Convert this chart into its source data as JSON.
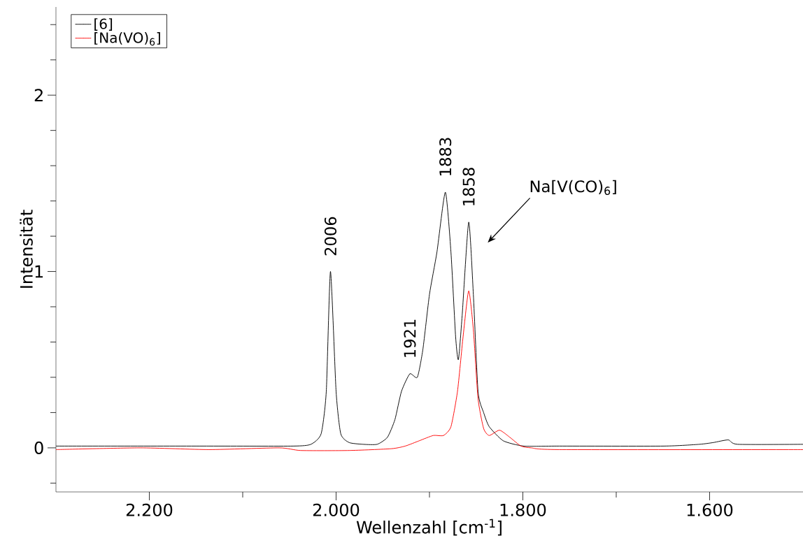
{
  "chart_data": {
    "type": "line",
    "xlabel": "Wellenzahl [cm$^{-1}$]",
    "ylabel": "Intensität",
    "xlim": [
      2300,
      1500
    ],
    "ylim": [
      -0.25,
      2.5
    ],
    "xticks": [
      {
        "value": 2200,
        "label": "2.200"
      },
      {
        "value": 2100,
        "label": null
      },
      {
        "value": 2000,
        "label": "2.000"
      },
      {
        "value": 1900,
        "label": null
      },
      {
        "value": 1800,
        "label": "1.800"
      },
      {
        "value": 1700,
        "label": null
      },
      {
        "value": 1600,
        "label": "1.600"
      }
    ],
    "yticks": [
      {
        "value": -0.2,
        "label": null
      },
      0,
      {
        "value": 0.2,
        "label": null
      },
      {
        "value": 0.4,
        "label": null
      },
      {
        "value": 0.6,
        "label": null
      },
      {
        "value": 0.8,
        "label": null
      },
      1,
      {
        "value": 1.2,
        "label": null
      },
      {
        "value": 1.4,
        "label": null
      },
      {
        "value": 1.6,
        "label": null
      },
      {
        "value": 1.8,
        "label": null
      },
      2,
      {
        "value": 2.2,
        "label": null
      },
      {
        "value": 2.4,
        "label": null
      }
    ],
    "grid": false,
    "legend": "top left",
    "marker": "none",
    "line_style": "solid",
    "series": [
      {
        "name": "[6]",
        "color": "#000000",
        "x": [
          2300,
          2136,
          2046,
          2027,
          2016,
          2010.5,
          2006,
          2000,
          1995,
          1986,
          1971,
          1956,
          1945,
          1937,
          1930,
          1921,
          1913,
          1907,
          1900,
          1892,
          1883,
          1877,
          1872,
          1869,
          1865,
          1858,
          1853,
          1848,
          1842,
          1836,
          1821,
          1799,
          1761,
          1649,
          1611,
          1596,
          1580,
          1570,
          1500
        ],
        "values": [
          0.01,
          0.01,
          0.01,
          0.02,
          0.08,
          0.32,
          1.0,
          0.32,
          0.08,
          0.03,
          0.02,
          0.02,
          0.06,
          0.16,
          0.32,
          0.42,
          0.4,
          0.56,
          0.87,
          1.11,
          1.45,
          1.11,
          0.63,
          0.5,
          0.75,
          1.28,
          0.87,
          0.32,
          0.2,
          0.12,
          0.04,
          0.01,
          0.01,
          0.01,
          0.02,
          0.03,
          0.045,
          0.02,
          0.02
        ]
      },
      {
        "name": "[Na(VO)$_{6}$]",
        "color": "#ff0000",
        "x": [
          2300,
          2210,
          2136,
          2061,
          2038,
          1986,
          1941,
          1926,
          1911,
          1896,
          1885,
          1877,
          1870,
          1864,
          1858,
          1853,
          1848,
          1842,
          1836,
          1825,
          1814,
          1802,
          1791,
          1761,
          1500
        ],
        "values": [
          -0.01,
          0.0,
          -0.01,
          0.0,
          -0.015,
          -0.015,
          -0.005,
          0.01,
          0.04,
          0.07,
          0.07,
          0.12,
          0.32,
          0.63,
          0.89,
          0.67,
          0.28,
          0.11,
          0.07,
          0.1,
          0.06,
          0.01,
          0.0,
          -0.01,
          -0.01
        ]
      }
    ],
    "annotations": [
      {
        "text": "2006",
        "x": 2006,
        "y": 1.0
      },
      {
        "text": "1921",
        "x": 1921,
        "y": 0.42
      },
      {
        "text": "1883",
        "x": 1883,
        "y": 1.45
      },
      {
        "text": "1858",
        "x": 1858,
        "y": 1.28
      },
      "Na[V(CO)$_{6}$]"
    ]
  }
}
